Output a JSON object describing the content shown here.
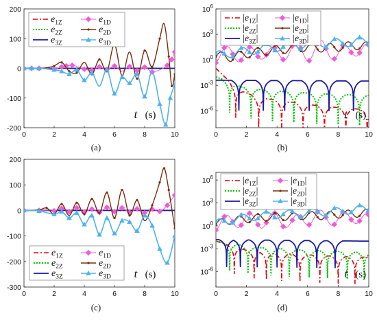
{
  "chart_data": [
    {
      "type": "line",
      "panel": "(a)",
      "yscale": "linear",
      "xlim": [
        0,
        10
      ],
      "ylim": [
        -200,
        200
      ],
      "xticks": [
        "0",
        "2",
        "4",
        "6",
        "8",
        "10"
      ],
      "yticks": [
        "-200",
        "-100",
        "0",
        "100",
        "200"
      ],
      "xlabel": "t",
      "xlabel_unit": "(s)",
      "series": [
        {
          "name": "e1Z",
          "sub": "1Z",
          "color": "#e8000b",
          "x": [
            0,
            10
          ],
          "y": [
            0,
            0
          ]
        },
        {
          "name": "e2Z",
          "sub": "2Z",
          "color": "#00c800",
          "x": [
            0,
            10
          ],
          "y": [
            0,
            0
          ]
        },
        {
          "name": "e3Z",
          "sub": "3Z",
          "color": "#1a1aa6",
          "x": [
            0,
            10
          ],
          "y": [
            0,
            0
          ]
        },
        {
          "name": "e1D",
          "sub": "1D",
          "color": "#f25ad8",
          "x": [
            0,
            0.5,
            1,
            1.5,
            2,
            2.5,
            2.8,
            3.2,
            3.6,
            4,
            4.5,
            5,
            5.5,
            6,
            6.5,
            7,
            7.5,
            8,
            8.5,
            9,
            9.5,
            9.8,
            10
          ],
          "y": [
            0,
            0,
            0,
            0,
            -2,
            5,
            8,
            10,
            5,
            -3,
            -6,
            5,
            -4,
            8,
            -10,
            6,
            -8,
            4,
            -12,
            -5,
            10,
            30,
            55
          ]
        },
        {
          "name": "e2D",
          "sub": "2D",
          "color": "#7a2e0a",
          "x": [
            0,
            0.5,
            1,
            1.5,
            2,
            2.5,
            3,
            3.5,
            4,
            4.5,
            5,
            5.5,
            6,
            6.5,
            7,
            7.5,
            8,
            8.5,
            9,
            9.3,
            9.6,
            9.8,
            10
          ],
          "y": [
            0,
            0,
            0,
            2,
            8,
            20,
            -10,
            -15,
            20,
            -20,
            30,
            -10,
            80,
            -25,
            55,
            -35,
            60,
            5,
            100,
            150,
            40,
            -60,
            -20
          ]
        },
        {
          "name": "e3D",
          "sub": "3D",
          "color": "#4db3ee",
          "x": [
            0,
            0.5,
            1,
            1.5,
            2,
            2.5,
            3,
            3.5,
            4,
            4.5,
            5,
            5.5,
            6,
            6.5,
            7,
            7.5,
            8,
            8.5,
            9,
            9.4,
            9.7,
            10
          ],
          "y": [
            0,
            0,
            0,
            -2,
            -5,
            -10,
            -20,
            -5,
            -40,
            -15,
            -60,
            -5,
            -85,
            -30,
            -50,
            -20,
            -95,
            -10,
            -120,
            -190,
            -100,
            -55
          ]
        }
      ]
    },
    {
      "type": "line",
      "panel": "(b)",
      "yscale": "log",
      "xlim": [
        0,
        10
      ],
      "ylim": [
        1e-08,
        1000000.0
      ],
      "xticks": [
        "0",
        "2",
        "4",
        "6",
        "8",
        "10"
      ],
      "yticks": [
        "10-6",
        "10-3",
        "100",
        "103",
        "106"
      ],
      "xlabel": "t",
      "xlabel_unit": "(s)",
      "series": [
        {
          "name": "|e1Z|",
          "sub": "1Z",
          "color": "#e8000b",
          "log_y": [
            -1,
            -3.5,
            -4.5,
            -4.8,
            -5.2,
            -5.5,
            -5.7,
            -5.9
          ],
          "cusps_x": [
            1.3,
            2.8,
            4.3,
            5.7,
            7.1,
            8.5,
            9.9
          ]
        },
        {
          "name": "|e2Z|",
          "sub": "2Z",
          "color": "#00c800",
          "log_y": [
            -2,
            -3.2,
            -3.6,
            -3.8,
            -4,
            -4.1,
            -4.2
          ],
          "cusps_x": [
            0.9,
            2.3,
            3.7,
            5.1,
            6.6,
            8.0,
            9.4
          ]
        },
        {
          "name": "|e3Z|",
          "sub": "3Z",
          "color": "#1a1aa6",
          "log_y": [
            -2.4,
            -2.5
          ],
          "cusps_x": [
            1.5,
            3.1,
            4.5,
            6.1,
            7.4,
            9.0
          ]
        },
        {
          "name": "|e1D|",
          "sub": "1D",
          "color": "#f25ad8",
          "x": [
            0,
            1,
            2,
            3,
            4,
            5,
            6,
            7,
            8,
            9,
            10
          ],
          "log_y": [
            0.5,
            0.8,
            0.5,
            1.0,
            0.5,
            1.3,
            0.7,
            1.5,
            0.6,
            1.4,
            0.9
          ]
        },
        {
          "name": "|e2D|",
          "sub": "2D",
          "color": "#7a2e0a",
          "x": [
            0,
            1,
            2,
            3,
            4,
            5,
            6,
            7,
            8,
            9,
            10
          ],
          "log_y": [
            0.5,
            0.3,
            0.7,
            1.0,
            1.2,
            1.3,
            1.5,
            1.4,
            1.5,
            1.7,
            1.6
          ]
        },
        {
          "name": "|e3D|",
          "sub": "3D",
          "color": "#4db3ee",
          "x": [
            0,
            1,
            2,
            3,
            4,
            5,
            6,
            7,
            8,
            9,
            10
          ],
          "log_y": [
            0.5,
            0.8,
            1.0,
            1.3,
            1.5,
            1.7,
            1.9,
            2.0,
            2.0,
            2.1,
            2.2
          ]
        }
      ]
    },
    {
      "type": "line",
      "panel": "(c)",
      "yscale": "linear",
      "xlim": [
        0,
        10
      ],
      "ylim": [
        -300,
        200
      ],
      "xticks": [
        "0",
        "2",
        "4",
        "6",
        "8",
        "10"
      ],
      "yticks": [
        "-300",
        "-200",
        "-100",
        "0",
        "100",
        "200"
      ],
      "xlabel": "t",
      "xlabel_unit": "(s)",
      "series": [
        {
          "name": "e1Z",
          "sub": "1Z",
          "color": "#e8000b",
          "x": [
            0,
            10
          ],
          "y": [
            0,
            0
          ]
        },
        {
          "name": "e2Z",
          "sub": "2Z",
          "color": "#00c800",
          "x": [
            0,
            10
          ],
          "y": [
            0,
            0
          ]
        },
        {
          "name": "e3Z",
          "sub": "3Z",
          "color": "#1a1aa6",
          "x": [
            0,
            10
          ],
          "y": [
            0,
            0
          ]
        },
        {
          "name": "e1D",
          "sub": "1D",
          "color": "#f25ad8",
          "x": [
            0,
            1,
            2,
            2.5,
            3,
            3.5,
            4,
            4.5,
            5,
            5.5,
            6,
            6.5,
            7,
            7.5,
            8,
            8.5,
            9,
            9.5,
            10
          ],
          "y": [
            0,
            0,
            -2,
            8,
            -5,
            10,
            -6,
            5,
            -8,
            12,
            -5,
            10,
            -8,
            6,
            -10,
            5,
            -4,
            20,
            60
          ]
        },
        {
          "name": "e2D",
          "sub": "2D",
          "color": "#7a2e0a",
          "x": [
            0,
            1,
            1.5,
            2,
            2.5,
            3,
            3.5,
            4,
            4.5,
            5,
            5.5,
            6,
            6.5,
            7,
            7.5,
            8,
            8.5,
            9,
            9.3,
            9.6,
            10
          ],
          "y": [
            0,
            2,
            10,
            -15,
            25,
            -20,
            30,
            -15,
            45,
            -10,
            70,
            -30,
            80,
            -20,
            40,
            -40,
            20,
            110,
            165,
            80,
            -70
          ]
        },
        {
          "name": "e3D",
          "sub": "3D",
          "color": "#4db3ee",
          "x": [
            0,
            1,
            2,
            2.5,
            3,
            3.5,
            4,
            4.5,
            5,
            5.5,
            6,
            6.5,
            7,
            7.5,
            8,
            8.5,
            9,
            9.5,
            10
          ],
          "y": [
            0,
            -2,
            -15,
            -5,
            -30,
            -10,
            -55,
            -20,
            -95,
            -30,
            -90,
            -40,
            -45,
            -80,
            -20,
            -60,
            -150,
            -205,
            -100
          ]
        }
      ]
    },
    {
      "type": "line",
      "panel": "(d)",
      "yscale": "log",
      "xlim": [
        0,
        10
      ],
      "ylim": [
        1e-08,
        10000000.0
      ],
      "xticks": [
        "0",
        "2",
        "4",
        "6",
        "8",
        "10"
      ],
      "yticks": [
        "10-6",
        "10-3",
        "100",
        "103",
        "106"
      ],
      "xlabel": "t",
      "xlabel_unit": "(s)",
      "series": [
        {
          "name": "|e1Z|",
          "sub": "1Z",
          "color": "#e8000b",
          "log_y": [
            -2,
            -3.2,
            -3.6,
            -3.8,
            -4,
            -4.1
          ],
          "cusps_x": [
            1.2,
            2.5,
            3.3,
            4.3,
            5.5,
            6.8,
            8.0,
            9.1
          ]
        },
        {
          "name": "|e2Z|",
          "sub": "2Z",
          "color": "#00c800",
          "log_y": [
            -2,
            -2.8,
            -3.1,
            -3.3,
            -3.5
          ],
          "cusps_x": [
            0.9,
            2.1,
            3.6,
            4.8,
            6.1,
            7.3,
            8.6,
            9.7
          ]
        },
        {
          "name": "|e3Z|",
          "sub": "3Z",
          "color": "#1a1aa6",
          "log_y": [
            -1.8,
            -2
          ],
          "cusps_x": [
            0.7,
            1.6,
            2.7,
            4.0,
            5.3,
            6.6,
            7.8
          ]
        },
        {
          "name": "|e1D|",
          "sub": "1D",
          "color": "#f25ad8",
          "x": [
            0,
            1,
            2,
            3,
            4,
            5,
            6,
            7,
            8,
            9,
            10
          ],
          "log_y": [
            0.3,
            0.6,
            0.8,
            0.6,
            0.9,
            0.4,
            1.0,
            1.2,
            0.8,
            1.3,
            0.6
          ]
        },
        {
          "name": "|e2D|",
          "sub": "2D",
          "color": "#7a2e0a",
          "x": [
            0,
            1,
            2,
            3,
            4,
            5,
            6,
            7,
            8,
            9,
            10
          ],
          "log_y": [
            0.3,
            0.7,
            0.9,
            1.1,
            1.2,
            1.2,
            1.4,
            1.3,
            1.5,
            1.6,
            1.7
          ]
        },
        {
          "name": "|e3D|",
          "sub": "3D",
          "color": "#4db3ee",
          "x": [
            0,
            1,
            2,
            3,
            4,
            5,
            6,
            7,
            8,
            9,
            10
          ],
          "log_y": [
            0.3,
            0.8,
            1.1,
            1.3,
            1.5,
            1.6,
            1.7,
            1.8,
            1.9,
            2.1,
            2.3
          ]
        }
      ]
    }
  ]
}
